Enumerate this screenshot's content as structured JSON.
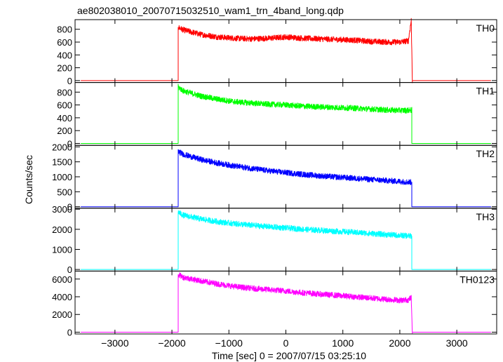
{
  "chart_data": {
    "type": "line",
    "title": "ae802038010_20070715032510_wam1_trn_4band_long.qdp",
    "xlabel": "Time [sec] 0 = 2007/07/15 03:25:10",
    "ylabel": "Counts/sec",
    "xlim": [
      -3700,
      3700
    ],
    "x_ticks": [
      -3000,
      -2000,
      -1000,
      0,
      1000,
      2000,
      3000
    ],
    "x_tick_labels": [
      "−3000",
      "−2000",
      "−1000",
      "0",
      "1000",
      "2000",
      "3000"
    ],
    "grid": false,
    "data_start": -3600,
    "data_end": 3600,
    "panels": [
      {
        "name": "TH0",
        "color": "#ff0000",
        "ylim": [
          -30,
          950
        ],
        "yticks": [
          0,
          200,
          400,
          600,
          800
        ],
        "points": [
          [
            -3600,
            0
          ],
          [
            -1890,
            0
          ],
          [
            -1890,
            830
          ],
          [
            -1800,
            790
          ],
          [
            -1500,
            720
          ],
          [
            -1200,
            680
          ],
          [
            -900,
            660
          ],
          [
            -600,
            650
          ],
          [
            -300,
            660
          ],
          [
            0,
            680
          ],
          [
            300,
            660
          ],
          [
            600,
            650
          ],
          [
            900,
            640
          ],
          [
            1200,
            630
          ],
          [
            1500,
            610
          ],
          [
            1800,
            600
          ],
          [
            2000,
            600
          ],
          [
            2150,
            620
          ],
          [
            2200,
            940
          ],
          [
            2220,
            0
          ],
          [
            3600,
            0
          ]
        ]
      },
      {
        "name": "TH1",
        "color": "#00ff00",
        "ylim": [
          -30,
          950
        ],
        "yticks": [
          0,
          200,
          400,
          600,
          800
        ],
        "points": [
          [
            -3600,
            0
          ],
          [
            -1890,
            0
          ],
          [
            -1890,
            880
          ],
          [
            -1800,
            820
          ],
          [
            -1500,
            740
          ],
          [
            -1200,
            690
          ],
          [
            -900,
            650
          ],
          [
            -600,
            630
          ],
          [
            -300,
            610
          ],
          [
            0,
            600
          ],
          [
            300,
            580
          ],
          [
            600,
            570
          ],
          [
            900,
            560
          ],
          [
            1200,
            550
          ],
          [
            1500,
            535
          ],
          [
            1800,
            520
          ],
          [
            2100,
            515
          ],
          [
            2210,
            520
          ],
          [
            2210,
            0
          ],
          [
            3600,
            0
          ]
        ]
      },
      {
        "name": "TH2",
        "color": "#0000ff",
        "ylim": [
          -50,
          2050
        ],
        "yticks": [
          0,
          500,
          1000,
          1500,
          2000
        ],
        "points": [
          [
            -3600,
            0
          ],
          [
            -1890,
            0
          ],
          [
            -1890,
            1850
          ],
          [
            -1800,
            1750
          ],
          [
            -1500,
            1580
          ],
          [
            -1200,
            1460
          ],
          [
            -900,
            1360
          ],
          [
            -600,
            1280
          ],
          [
            -300,
            1200
          ],
          [
            0,
            1140
          ],
          [
            300,
            1080
          ],
          [
            600,
            1030
          ],
          [
            900,
            990
          ],
          [
            1200,
            950
          ],
          [
            1500,
            910
          ],
          [
            1800,
            870
          ],
          [
            2100,
            830
          ],
          [
            2210,
            820
          ],
          [
            2210,
            0
          ],
          [
            3600,
            0
          ]
        ]
      },
      {
        "name": "TH3",
        "color": "#00ffff",
        "ylim": [
          -80,
          3050
        ],
        "yticks": [
          0,
          1000,
          2000,
          3000
        ],
        "points": [
          [
            -3600,
            0
          ],
          [
            -1890,
            0
          ],
          [
            -1890,
            2850
          ],
          [
            -1800,
            2700
          ],
          [
            -1500,
            2520
          ],
          [
            -1200,
            2380
          ],
          [
            -900,
            2280
          ],
          [
            -600,
            2200
          ],
          [
            -300,
            2130
          ],
          [
            0,
            2070
          ],
          [
            300,
            2000
          ],
          [
            600,
            1950
          ],
          [
            900,
            1900
          ],
          [
            1200,
            1850
          ],
          [
            1500,
            1790
          ],
          [
            1800,
            1730
          ],
          [
            2100,
            1680
          ],
          [
            2210,
            1660
          ],
          [
            2210,
            0
          ],
          [
            3600,
            0
          ]
        ]
      },
      {
        "name": "TH0123",
        "color": "#ff00ff",
        "ylim": [
          -200,
          6900
        ],
        "yticks": [
          0,
          2000,
          4000,
          6000
        ],
        "points": [
          [
            -3600,
            0
          ],
          [
            -1890,
            0
          ],
          [
            -1890,
            6500
          ],
          [
            -1800,
            6200
          ],
          [
            -1500,
            5800
          ],
          [
            -1200,
            5450
          ],
          [
            -900,
            5150
          ],
          [
            -600,
            4950
          ],
          [
            -300,
            4800
          ],
          [
            0,
            4650
          ],
          [
            300,
            4450
          ],
          [
            600,
            4300
          ],
          [
            900,
            4150
          ],
          [
            1200,
            4000
          ],
          [
            1500,
            3850
          ],
          [
            1800,
            3700
          ],
          [
            2000,
            3600
          ],
          [
            2150,
            3650
          ],
          [
            2200,
            3900
          ],
          [
            2220,
            0
          ],
          [
            3600,
            0
          ]
        ]
      }
    ]
  }
}
